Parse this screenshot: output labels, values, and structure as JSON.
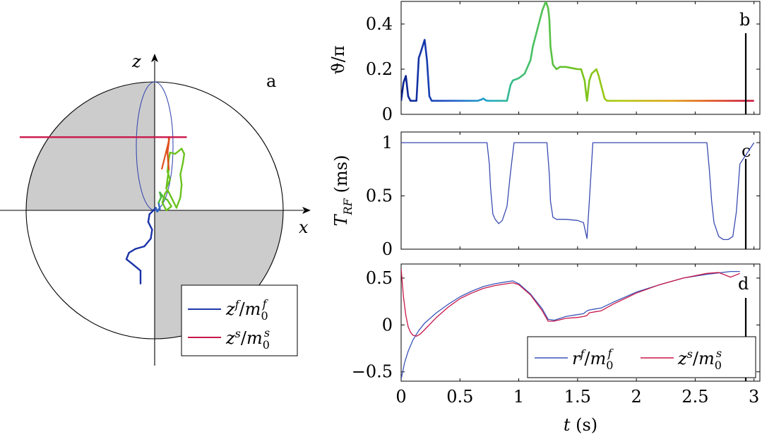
{
  "chart_data": [
    {
      "id": "a",
      "type": "line",
      "panel_label": "a",
      "xlabel": "x",
      "ylabel": "z",
      "description_unit_circle": 1,
      "shaded_quadrants": [
        "top-left",
        "bottom-right"
      ],
      "legend": {
        "placement": "bottom-right",
        "entries": [
          {
            "label_base": "z",
            "label_sup": "f",
            "label_den_base": "m",
            "label_den_sub": "0",
            "label_den_sup": "f",
            "color": "#1f3aa8"
          },
          {
            "label_base": "z",
            "label_sup": "s",
            "label_den_base": "m",
            "label_den_sub": "0",
            "label_den_sup": "s",
            "color": "#c8174a"
          }
        ]
      },
      "horizontal_line_z": 0.57,
      "horizontal_line_x": [
        -1.05,
        0.25
      ],
      "tilted_ellipse_rx": 0.14,
      "series": [
        {
          "name": "zf_trajectory",
          "points": [
            [
              -0.11,
              -0.57
            ],
            [
              -0.11,
              -0.47
            ],
            [
              -0.17,
              -0.42
            ],
            [
              -0.22,
              -0.38
            ],
            [
              -0.2,
              -0.33
            ],
            [
              -0.15,
              -0.3
            ],
            [
              -0.08,
              -0.28
            ],
            [
              -0.03,
              -0.22
            ],
            [
              -0.02,
              -0.15
            ],
            [
              -0.05,
              -0.09
            ],
            [
              -0.04,
              -0.03
            ],
            [
              -0.01,
              0.0
            ],
            [
              0.01,
              0.02
            ],
            [
              0.02,
              -0.01
            ],
            [
              0.04,
              0.01
            ],
            [
              0.03,
              0.06
            ],
            [
              0.05,
              0.1
            ],
            [
              0.04,
              0.14
            ],
            [
              0.07,
              0.1
            ],
            [
              0.1,
              0.08
            ],
            [
              0.13,
              0.03
            ],
            [
              0.09,
              0.0
            ],
            [
              0.06,
              0.06
            ],
            [
              0.08,
              0.13
            ],
            [
              0.1,
              0.16
            ],
            [
              0.13,
              0.1
            ],
            [
              0.17,
              0.02
            ],
            [
              0.2,
              0.1
            ],
            [
              0.21,
              0.2
            ],
            [
              0.2,
              0.28
            ],
            [
              0.22,
              0.37
            ],
            [
              0.23,
              0.44
            ],
            [
              0.21,
              0.48
            ],
            [
              0.16,
              0.44
            ],
            [
              0.12,
              0.45
            ],
            [
              0.11,
              0.4
            ],
            [
              0.1,
              0.3
            ],
            [
              0.12,
              0.24
            ],
            [
              0.09,
              0.17
            ],
            [
              0.11,
              0.32
            ],
            [
              0.1,
              0.45
            ],
            [
              0.11,
              0.53
            ],
            [
              0.11,
              0.57
            ]
          ]
        }
      ]
    },
    {
      "id": "b",
      "type": "line",
      "panel_label": "b",
      "ylabel": "ϑ/π",
      "ylim": [
        0,
        0.5
      ],
      "yticks": [
        "0",
        "0.2",
        "0.4"
      ],
      "ytick_values": [
        0,
        0.2,
        0.4
      ],
      "xlim": [
        0,
        3.05
      ],
      "cursor_t": 2.93,
      "series": [
        {
          "name": "theta",
          "x": [
            0,
            0.02,
            0.04,
            0.06,
            0.08,
            0.13,
            0.15,
            0.17,
            0.2,
            0.22,
            0.24,
            0.26,
            0.3,
            0.65,
            0.68,
            0.7,
            0.72,
            0.74,
            0.9,
            0.93,
            0.95,
            1.0,
            1.05,
            1.1,
            1.12,
            1.16,
            1.2,
            1.23,
            1.25,
            1.26,
            1.27,
            1.29,
            1.32,
            1.35,
            1.37,
            1.4,
            1.5,
            1.53,
            1.56,
            1.58,
            1.6,
            1.62,
            1.64,
            1.66,
            1.68,
            1.7,
            1.73,
            1.75,
            2.0,
            2.5,
            3.0
          ],
          "y": [
            0.06,
            0.14,
            0.17,
            0.08,
            0.06,
            0.06,
            0.25,
            0.28,
            0.33,
            0.24,
            0.08,
            0.06,
            0.06,
            0.06,
            0.065,
            0.07,
            0.062,
            0.06,
            0.06,
            0.13,
            0.15,
            0.16,
            0.18,
            0.24,
            0.3,
            0.38,
            0.46,
            0.5,
            0.47,
            0.42,
            0.3,
            0.22,
            0.2,
            0.21,
            0.21,
            0.21,
            0.2,
            0.2,
            0.15,
            0.06,
            0.15,
            0.18,
            0.19,
            0.2,
            0.17,
            0.13,
            0.07,
            0.06,
            0.06,
            0.06,
            0.06
          ]
        }
      ]
    },
    {
      "id": "c",
      "type": "line",
      "panel_label": "c",
      "ylabel": "T_RF (ms)",
      "ylabel_base": "T",
      "ylabel_sub": "RF",
      "ylabel_unit": "(ms)",
      "ylim": [
        0,
        1.1
      ],
      "yticks": [
        "0",
        "0.5",
        "1"
      ],
      "ytick_values": [
        0,
        0.5,
        1
      ],
      "xlim": [
        0,
        3.05
      ],
      "cursor_t": 2.93,
      "series": [
        {
          "name": "T_RF",
          "x": [
            0,
            0.73,
            0.75,
            0.76,
            0.78,
            0.8,
            0.83,
            0.86,
            0.9,
            0.93,
            0.96,
            1.0,
            1.24,
            1.26,
            1.27,
            1.29,
            1.32,
            1.4,
            1.5,
            1.55,
            1.58,
            1.6,
            1.63,
            2.6,
            2.62,
            2.64,
            2.66,
            2.7,
            2.74,
            2.78,
            2.82,
            2.85,
            2.88,
            3.0
          ],
          "y": [
            1.0,
            1.0,
            0.8,
            0.58,
            0.33,
            0.28,
            0.24,
            0.27,
            0.4,
            0.72,
            1.0,
            1.0,
            1.0,
            0.7,
            0.45,
            0.3,
            0.28,
            0.28,
            0.27,
            0.25,
            0.1,
            0.45,
            1.0,
            1.0,
            0.75,
            0.45,
            0.25,
            0.12,
            0.09,
            0.09,
            0.12,
            0.35,
            0.8,
            1.0
          ]
        }
      ]
    },
    {
      "id": "d",
      "type": "line",
      "panel_label": "d",
      "xlabel": "t (s)",
      "ylim": [
        -0.6,
        0.65
      ],
      "yticks": [
        "−0.5",
        "0",
        "0.5"
      ],
      "ytick_values": [
        -0.5,
        0,
        0.5
      ],
      "xlim": [
        0,
        3.05
      ],
      "xticks": [
        "0",
        "0.5",
        "1",
        "1.5",
        "2",
        "2.5",
        "3"
      ],
      "xtick_values": [
        0,
        0.5,
        1,
        1.5,
        2,
        2.5,
        3
      ],
      "cursor_t": 2.93,
      "legend": {
        "placement": "bottom-right",
        "entries": [
          {
            "label_base": "r",
            "label_sup": "f",
            "label_den_base": "m",
            "label_den_sub": "0",
            "label_den_sup": "f",
            "color": "#3a55b8"
          },
          {
            "label_base": "z",
            "label_sup": "s",
            "label_den_base": "m",
            "label_den_sub": "0",
            "label_den_sup": "s",
            "color": "#c8174a"
          }
        ]
      },
      "series": [
        {
          "name": "rf/m0f",
          "color": "#3a55b8",
          "x": [
            0,
            0.03,
            0.06,
            0.1,
            0.15,
            0.2,
            0.3,
            0.4,
            0.5,
            0.6,
            0.7,
            0.8,
            0.9,
            0.95,
            1.0,
            1.1,
            1.2,
            1.25,
            1.3,
            1.4,
            1.5,
            1.55,
            1.58,
            1.6,
            1.65,
            1.7,
            1.8,
            2.0,
            2.2,
            2.4,
            2.6,
            2.8,
            2.88
          ],
          "y": [
            -0.58,
            -0.4,
            -0.28,
            -0.16,
            -0.06,
            0.02,
            0.13,
            0.22,
            0.3,
            0.36,
            0.41,
            0.44,
            0.46,
            0.47,
            0.44,
            0.33,
            0.17,
            0.06,
            0.05,
            0.09,
            0.11,
            0.12,
            0.15,
            0.16,
            0.17,
            0.18,
            0.24,
            0.35,
            0.43,
            0.5,
            0.54,
            0.57,
            0.57
          ]
        },
        {
          "name": "zs/m0s",
          "color": "#c8174a",
          "x": [
            0,
            0.02,
            0.04,
            0.06,
            0.08,
            0.1,
            0.13,
            0.16,
            0.2,
            0.3,
            0.4,
            0.5,
            0.6,
            0.7,
            0.8,
            0.9,
            0.95,
            1.0,
            1.1,
            1.2,
            1.25,
            1.3,
            1.4,
            1.5,
            1.55,
            1.58,
            1.6,
            1.65,
            1.7,
            1.8,
            2.0,
            2.2,
            2.4,
            2.6,
            2.7,
            2.8,
            2.88
          ],
          "y": [
            0.6,
            0.3,
            0.1,
            -0.02,
            -0.08,
            -0.11,
            -0.12,
            -0.1,
            -0.05,
            0.08,
            0.19,
            0.28,
            0.34,
            0.39,
            0.42,
            0.44,
            0.45,
            0.43,
            0.32,
            0.15,
            0.04,
            0.04,
            0.07,
            0.08,
            0.09,
            0.1,
            0.13,
            0.14,
            0.15,
            0.22,
            0.34,
            0.43,
            0.5,
            0.55,
            0.56,
            0.51,
            0.55
          ]
        }
      ]
    }
  ]
}
